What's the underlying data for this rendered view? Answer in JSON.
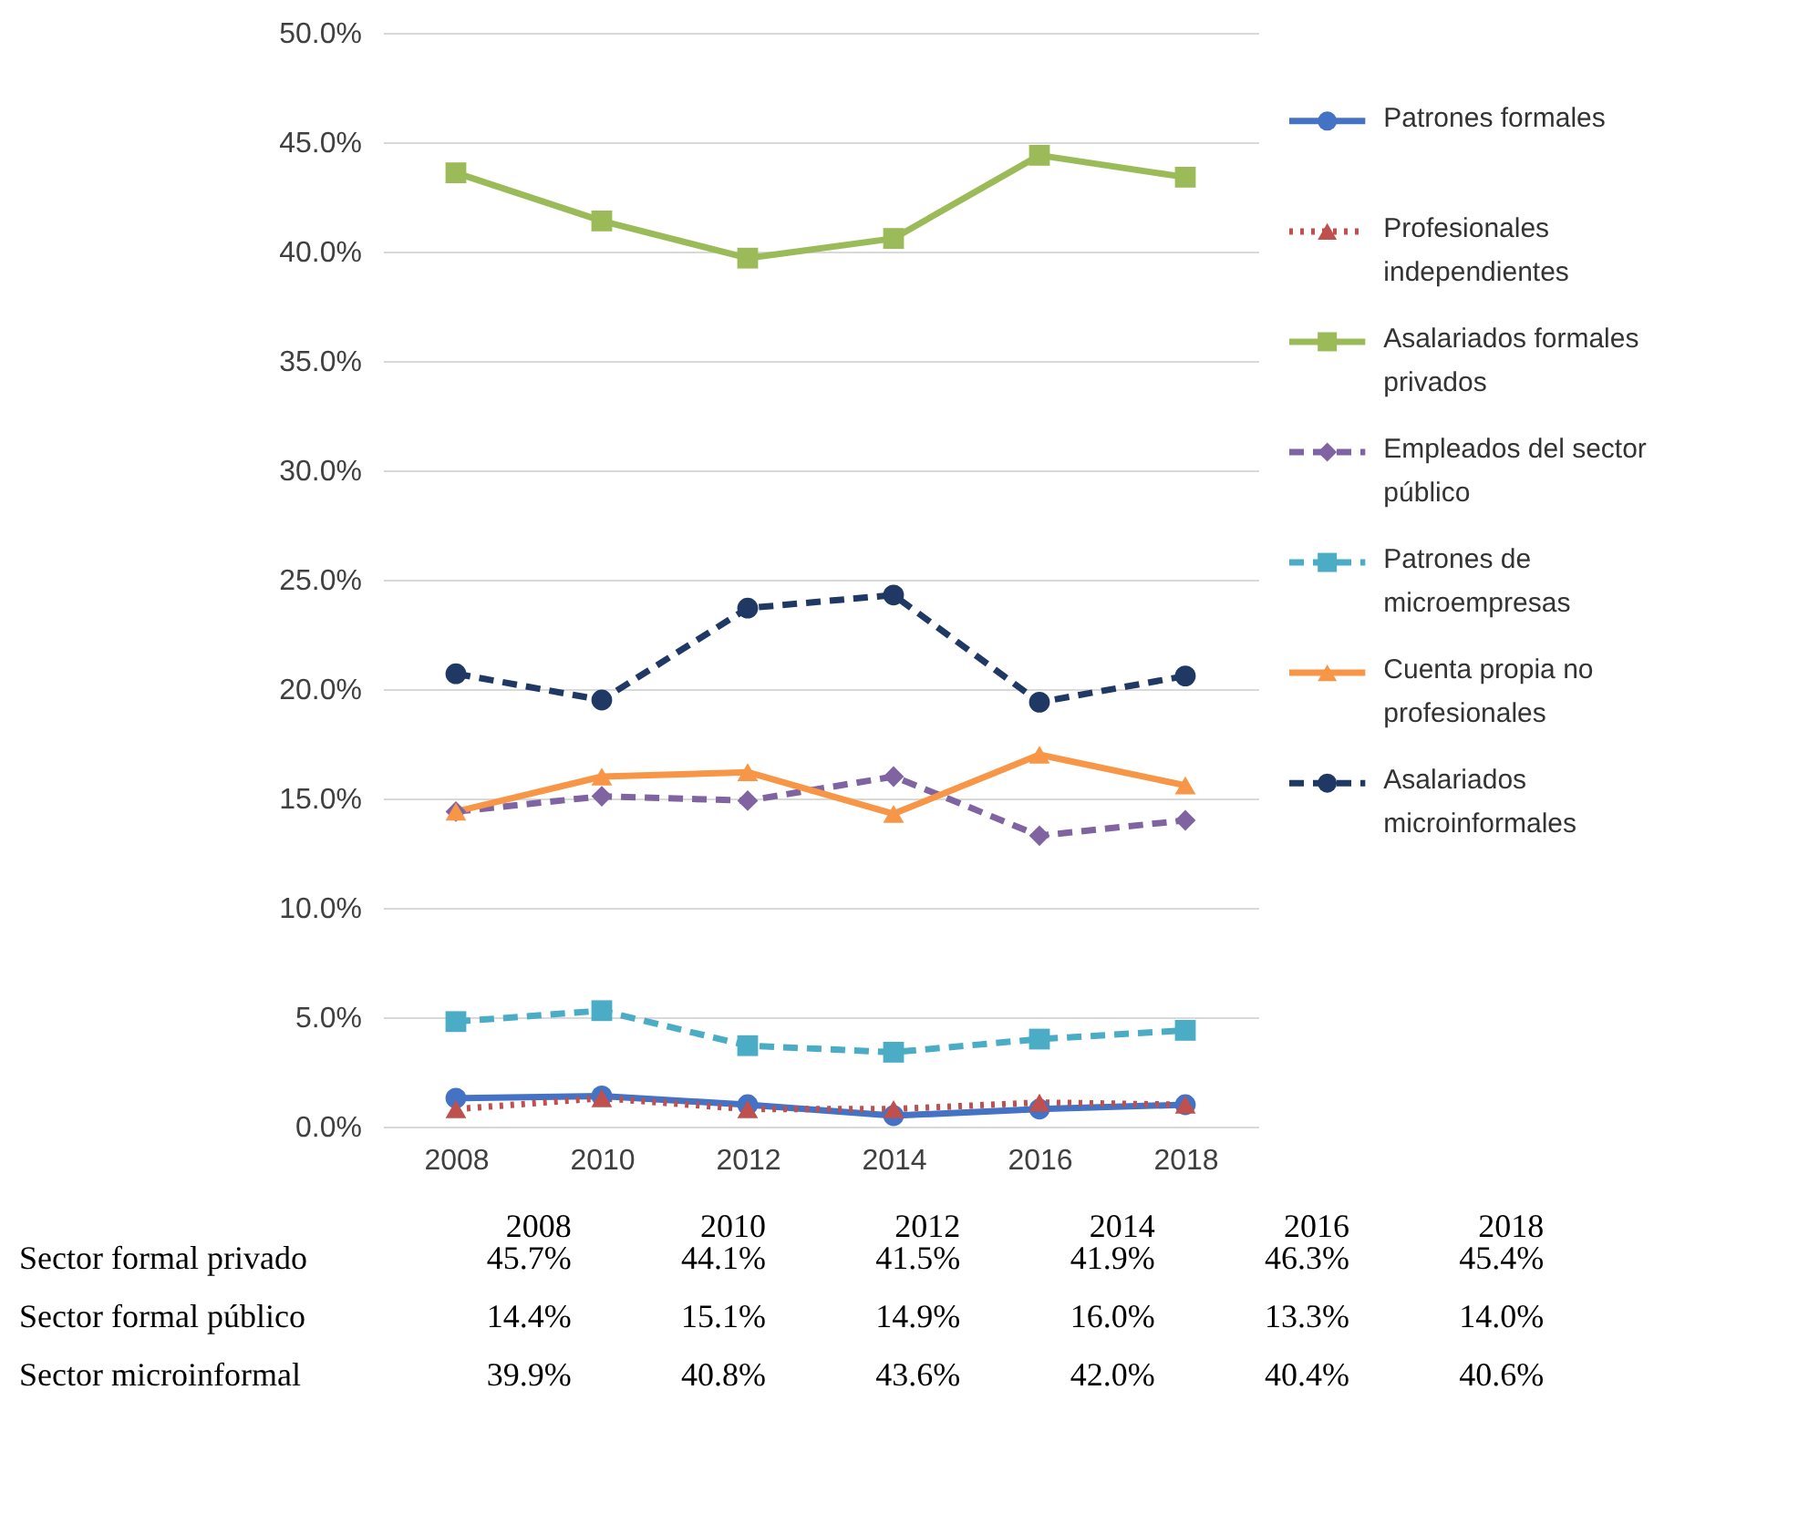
{
  "chart_data": [
    {
      "type": "line",
      "categories": [
        "2008",
        "2010",
        "2012",
        "2014",
        "2016",
        "2018"
      ],
      "ylim": [
        0,
        50
      ],
      "yticks": [
        {
          "value": 0,
          "label": "0.0%"
        },
        {
          "value": 5,
          "label": "5.0%"
        },
        {
          "value": 10,
          "label": "10.0%"
        },
        {
          "value": 15,
          "label": "15.0%"
        },
        {
          "value": 20,
          "label": "20.0%"
        },
        {
          "value": 25,
          "label": "25.0%"
        },
        {
          "value": 30,
          "label": "30.0%"
        },
        {
          "value": 35,
          "label": "35.0%"
        },
        {
          "value": 40,
          "label": "40.0%"
        },
        {
          "value": 45,
          "label": "45.0%"
        },
        {
          "value": 50,
          "label": "50.0%"
        }
      ],
      "grid": "y",
      "legend": "right",
      "series": [
        {
          "name": "Patrones formales",
          "color": "#4472c4",
          "marker": "circle",
          "line_style": "solid",
          "values": [
            1.3,
            1.4,
            1.0,
            0.5,
            0.8,
            1.0
          ]
        },
        {
          "name": "Profesionales independientes",
          "color": "#c0504d",
          "marker": "triangle",
          "line_style": "dotted",
          "values": [
            0.8,
            1.3,
            0.8,
            0.8,
            1.1,
            1.0
          ]
        },
        {
          "name": "Asalariados formales privados",
          "color": "#9bbb59",
          "marker": "square",
          "line_style": "solid",
          "values": [
            43.6,
            41.4,
            39.7,
            40.6,
            44.4,
            43.4
          ]
        },
        {
          "name": "Empleados del sector público",
          "color": "#8064a2",
          "marker": "diamond",
          "line_style": "dashed",
          "values": [
            14.4,
            15.1,
            14.9,
            16.0,
            13.3,
            14.0
          ]
        },
        {
          "name": "Patrones de microempresas",
          "color": "#4bacc6",
          "marker": "square",
          "line_style": "dashed",
          "values": [
            4.8,
            5.3,
            3.7,
            3.4,
            4.0,
            4.4
          ]
        },
        {
          "name": "Cuenta propia no profesionales",
          "color": "#f79646",
          "marker": "triangle",
          "line_style": "solid",
          "values": [
            14.4,
            16.0,
            16.2,
            14.3,
            17.0,
            15.6
          ]
        },
        {
          "name": "Asalariados microinformales",
          "color": "#1f3864",
          "marker": "circle",
          "line_style": "dashed",
          "values": [
            20.7,
            19.5,
            23.7,
            24.3,
            19.4,
            20.6
          ]
        }
      ]
    },
    {
      "type": "heatmap",
      "categories": [
        "2008",
        "2010",
        "2012",
        "2014",
        "2016",
        "2018"
      ],
      "y_categories": [
        "Sector formal privado",
        "Sector formal público",
        "Sector microinformal"
      ],
      "cells": [
        [
          45.7,
          44.1,
          41.5,
          41.9,
          46.3,
          45.4
        ],
        [
          14.4,
          15.1,
          14.9,
          16.0,
          13.3,
          14.0
        ],
        [
          39.9,
          40.8,
          43.6,
          42.0,
          40.4,
          40.6
        ]
      ],
      "cell_labels": [
        [
          "45.7%",
          "44.1%",
          "41.5%",
          "41.9%",
          "46.3%",
          "45.4%"
        ],
        [
          "14.4%",
          "15.1%",
          "14.9%",
          "16.0%",
          "13.3%",
          "14.0%"
        ],
        [
          "39.9%",
          "40.8%",
          "43.6%",
          "42.0%",
          "40.4%",
          "40.6%"
        ]
      ]
    }
  ]
}
